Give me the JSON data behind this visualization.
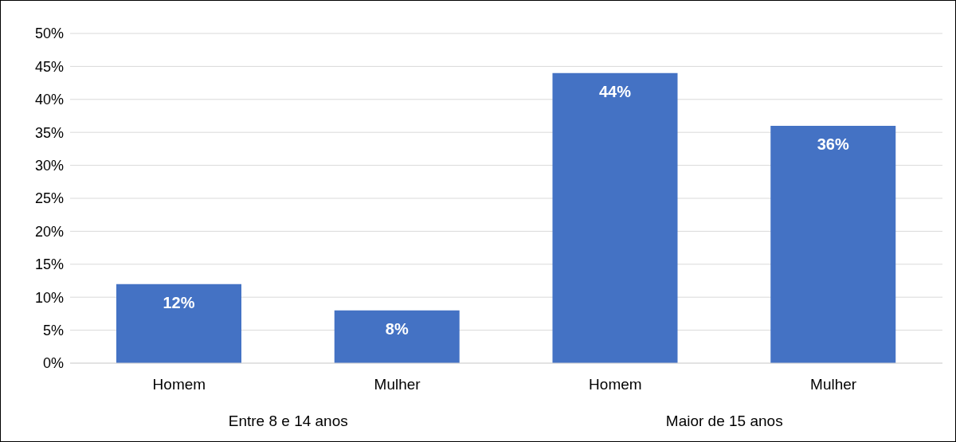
{
  "chart_data": {
    "type": "bar",
    "categories": [
      "Homem",
      "Mulher",
      "Homem",
      "Mulher"
    ],
    "values": [
      12,
      8,
      44,
      36
    ],
    "color": "#4472c4",
    "ylim": [
      0,
      50
    ],
    "yticks": [
      {
        "value": 0,
        "label": "0%"
      },
      {
        "value": 5,
        "label": "5%"
      },
      {
        "value": 10,
        "label": "10%"
      },
      {
        "value": 15,
        "label": "15%"
      },
      {
        "value": 20,
        "label": "20%"
      },
      {
        "value": 25,
        "label": "25%"
      },
      {
        "value": 30,
        "label": "30%"
      },
      {
        "value": 35,
        "label": "35%"
      },
      {
        "value": 40,
        "label": "40%"
      },
      {
        "value": 45,
        "label": "45%"
      },
      {
        "value": 50,
        "label": "50%"
      }
    ],
    "value_labels": [
      "12%",
      "8%",
      "44%",
      "36%"
    ],
    "annotations": [
      "Entre 8 e 14 anos",
      "Maior de 15 anos"
    ],
    "grid": "y",
    "legend": false
  }
}
